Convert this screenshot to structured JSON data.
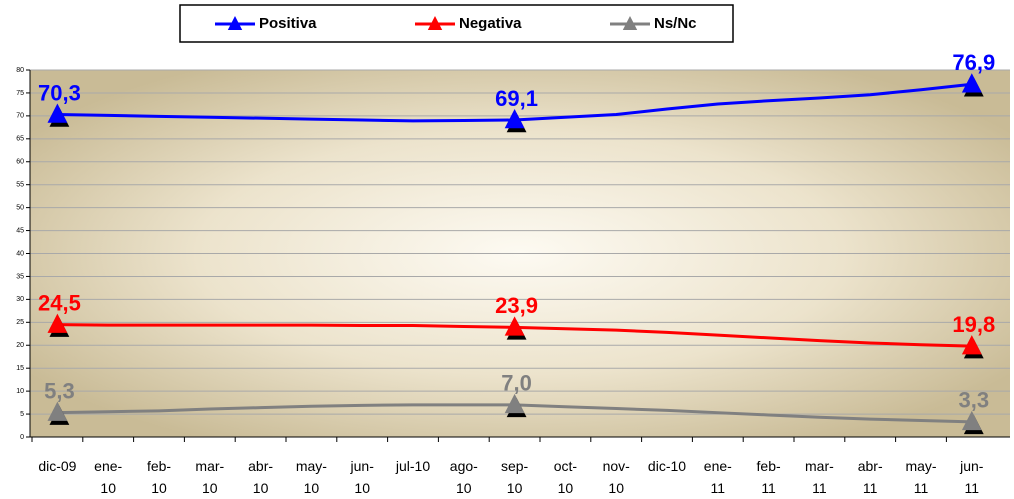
{
  "chart_data": {
    "type": "line",
    "categories": [
      "dic-09",
      "ene-\n10",
      "feb-\n10",
      "mar-\n10",
      "abr-\n10",
      "may-\n10",
      "jun-\n10",
      "jul-10",
      "ago-\n10",
      "sep-\n10",
      "oct-\n10",
      "nov-\n10",
      "dic-10",
      "ene-\n11",
      "feb-\n11",
      "mar-\n11",
      "abr-\n11",
      "may-\n11",
      "jun-\n11"
    ],
    "series": [
      {
        "name": "Positiva",
        "color": "#0000ff",
        "values": [
          70.3,
          70.1,
          69.9,
          69.7,
          69.5,
          69.3,
          69.1,
          68.9,
          69.0,
          69.1,
          69.7,
          70.3,
          71.5,
          72.6,
          73.3,
          73.9,
          74.6,
          75.7,
          76.9
        ],
        "value_labels": [
          "70,3",
          null,
          null,
          null,
          null,
          null,
          null,
          null,
          null,
          "69,1",
          null,
          null,
          null,
          null,
          null,
          null,
          null,
          null,
          "76,9"
        ]
      },
      {
        "name": "Negativa",
        "color": "#ff0000",
        "values": [
          24.5,
          24.4,
          24.4,
          24.4,
          24.4,
          24.4,
          24.3,
          24.3,
          24.1,
          23.9,
          23.6,
          23.3,
          22.8,
          22.2,
          21.6,
          21.0,
          20.5,
          20.1,
          19.8
        ],
        "value_labels": [
          "24,5",
          null,
          null,
          null,
          null,
          null,
          null,
          null,
          null,
          "23,9",
          null,
          null,
          null,
          null,
          null,
          null,
          null,
          null,
          "19,8"
        ]
      },
      {
        "name": "Ns/Nc",
        "color": "#808080",
        "values": [
          5.3,
          5.5,
          5.7,
          6.1,
          6.4,
          6.7,
          6.9,
          7.0,
          7.0,
          7.0,
          6.6,
          6.2,
          5.8,
          5.3,
          4.8,
          4.3,
          3.9,
          3.6,
          3.3
        ],
        "value_labels": [
          "5,3",
          null,
          null,
          null,
          null,
          null,
          null,
          null,
          null,
          "7,0",
          null,
          null,
          null,
          null,
          null,
          null,
          null,
          null,
          "3,3"
        ]
      }
    ],
    "ylim": [
      0,
      80
    ],
    "yticks": [
      0,
      5,
      10,
      15,
      20,
      25,
      30,
      35,
      40,
      45,
      50,
      55,
      60,
      65,
      70,
      75,
      80
    ],
    "grid": true,
    "legend": "top"
  }
}
